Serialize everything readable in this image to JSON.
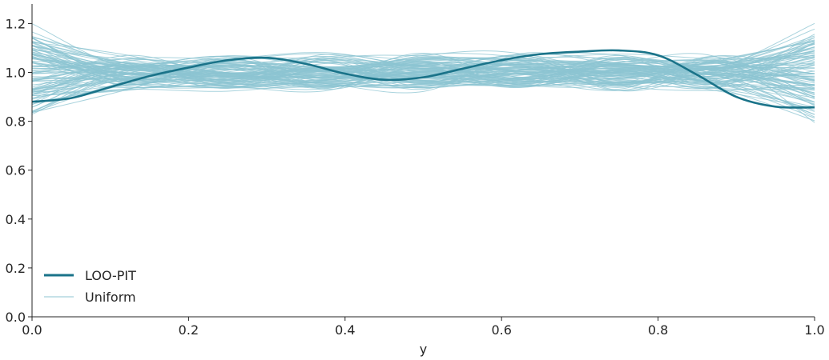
{
  "chart_data": {
    "type": "line",
    "title": "",
    "xlabel": "y",
    "ylabel": "",
    "xlim": [
      0,
      1
    ],
    "ylim": [
      0,
      1.28
    ],
    "xticks": [
      "0.0",
      "0.2",
      "0.4",
      "0.6",
      "0.8",
      "1.0"
    ],
    "yticks": [
      "0.0",
      "0.2",
      "0.4",
      "0.6",
      "0.8",
      "1.0",
      "1.2"
    ],
    "grid": false,
    "legend_position": "lower-left",
    "legend": [
      "LOO-PIT",
      "Uniform"
    ],
    "series": [
      {
        "name": "LOO-PIT",
        "color": "#1a7389",
        "x": [
          0.0,
          0.05,
          0.1,
          0.15,
          0.2,
          0.25,
          0.3,
          0.35,
          0.4,
          0.45,
          0.5,
          0.55,
          0.6,
          0.65,
          0.7,
          0.75,
          0.8,
          0.85,
          0.9,
          0.95,
          1.0
        ],
        "y": [
          0.88,
          0.895,
          0.94,
          0.985,
          1.02,
          1.05,
          1.06,
          1.035,
          0.995,
          0.97,
          0.98,
          1.015,
          1.05,
          1.075,
          1.085,
          1.09,
          1.07,
          0.99,
          0.9,
          0.86,
          0.857
        ]
      },
      {
        "name": "Uniform",
        "color": "#8cc4d1",
        "n_curves": 100,
        "y_center": 1.0,
        "y_spread": [
          0.75,
          1.25
        ],
        "note_hidden": ""
      }
    ]
  }
}
